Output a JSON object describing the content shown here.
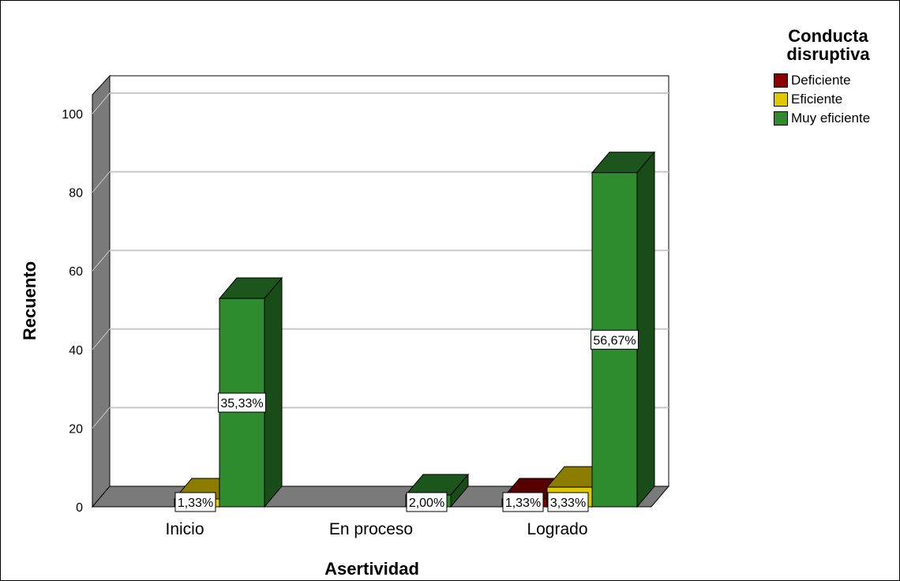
{
  "chart_data": {
    "type": "bar",
    "categories": [
      "Inicio",
      "En proceso",
      "Logrado"
    ],
    "series": [
      {
        "name": "Deficiente",
        "color": "#8b0000",
        "values": [
          0,
          0,
          2
        ]
      },
      {
        "name": "Eficiente",
        "color": "#e0c800",
        "values": [
          2,
          0,
          5
        ]
      },
      {
        "name": "Muy eficiente",
        "color": "#2e8b2e",
        "values": [
          53,
          3,
          85
        ]
      }
    ],
    "labels": [
      {
        "category": "Inicio",
        "series": "Eficiente",
        "text": "1,33%"
      },
      {
        "category": "Inicio",
        "series": "Muy eficiente",
        "text": "35,33%"
      },
      {
        "category": "En proceso",
        "series": "Muy eficiente",
        "text": "2,00%"
      },
      {
        "category": "Logrado",
        "series": "Deficiente",
        "text": "1,33%"
      },
      {
        "category": "Logrado",
        "series": "Eficiente",
        "text": "3,33%"
      },
      {
        "category": "Logrado",
        "series": "Muy eficiente",
        "text": "56,67%"
      }
    ],
    "xlabel": "Asertividad",
    "ylabel": "Recuento",
    "ylim": [
      0,
      100
    ],
    "yticks": [
      0,
      20,
      40,
      60,
      80,
      100
    ],
    "legend_title": "Conducta disruptiva",
    "legend_position": "top-right",
    "grid": true,
    "style": "3d"
  }
}
